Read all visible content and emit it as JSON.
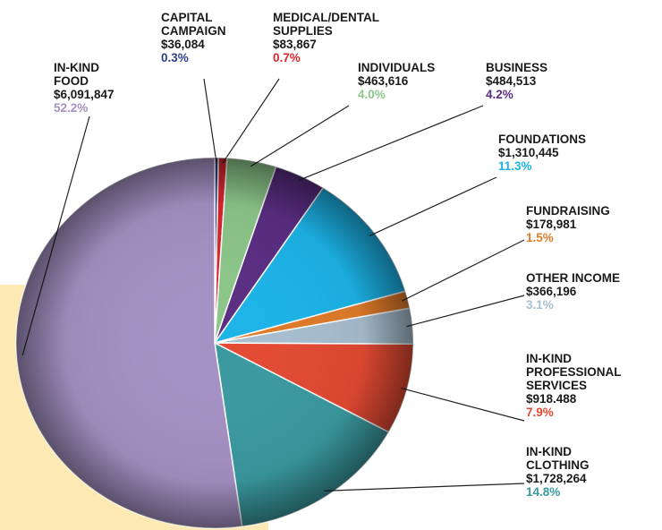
{
  "chart_data": {
    "type": "pie",
    "categories": [
      "CAPITAL CAMPAIGN",
      "MEDICAL/DENTAL SUPPLIES",
      "INDIVIDUALS",
      "BUSINESS",
      "FOUNDATIONS",
      "FUNDRAISING",
      "OTHER INCOME",
      "IN-KIND PROFESSIONAL SERVICES",
      "IN-KIND CLOTHING",
      "IN-KIND FOOD"
    ],
    "amounts": [
      "$36,084",
      "$83,867",
      "$463,616",
      "$484,513",
      "$1,310,445",
      "$178,981",
      "$366,196",
      "$918.488",
      "$1,728,264",
      "$6,091,847"
    ],
    "values": [
      0.3,
      0.7,
      4.0,
      4.2,
      11.3,
      1.5,
      3.1,
      7.9,
      14.8,
      52.2
    ],
    "value_labels": [
      "0.3%",
      "0.7%",
      "4.0%",
      "4.2%",
      "11.3%",
      "1.5%",
      "3.1%",
      "7.9%",
      "14.8%",
      "52.2%"
    ],
    "colors": [
      "#2e3f8f",
      "#d9262e",
      "#8cc68a",
      "#5a2d82",
      "#1cb4e8",
      "#e07b28",
      "#a8bfd0",
      "#e34a33",
      "#3a9aa0",
      "#a591c4"
    ]
  }
}
